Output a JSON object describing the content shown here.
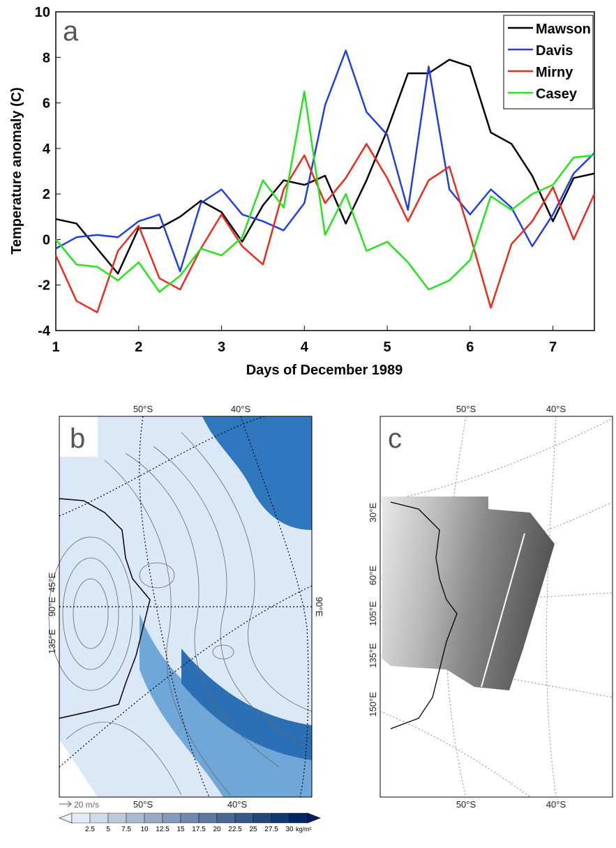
{
  "chart_data": {
    "type": "line",
    "annotation": "a",
    "xlabel": "Days of December 1989",
    "ylabel": "Temperature anomaly (C)",
    "x": [
      1,
      1.25,
      1.5,
      1.75,
      2,
      2.25,
      2.5,
      2.75,
      3,
      3.25,
      3.5,
      3.75,
      4,
      4.25,
      4.5,
      4.75,
      5,
      5.25,
      5.5,
      5.75,
      6,
      6.25,
      6.5,
      6.75,
      7,
      7.25,
      7.5
    ],
    "series": [
      {
        "name": "Mawson",
        "color": "#000000",
        "values": [
          0.9,
          0.7,
          -0.4,
          -1.5,
          0.5,
          0.5,
          1.0,
          1.7,
          1.2,
          -0.1,
          1.5,
          2.6,
          2.4,
          2.8,
          0.7,
          2.6,
          4.8,
          7.3,
          7.3,
          7.9,
          7.6,
          4.7,
          4.2,
          2.8,
          0.8,
          2.7,
          2.9
        ]
      },
      {
        "name": "Davis",
        "color": "#1f3fe0",
        "values": [
          -0.4,
          0.1,
          0.2,
          0.1,
          0.8,
          1.1,
          -1.4,
          1.6,
          2.2,
          1.1,
          0.8,
          0.4,
          1.6,
          5.9,
          8.3,
          5.6,
          4.6,
          1.3,
          7.6,
          2.2,
          1.1,
          2.2,
          1.4,
          -0.3,
          1.1,
          2.9,
          3.8
        ]
      },
      {
        "name": "Mirny",
        "color": "#ee2a1a",
        "values": [
          -0.7,
          -2.7,
          -3.2,
          -0.5,
          0.6,
          -1.7,
          -2.2,
          -0.4,
          1.1,
          -0.3,
          -1.1,
          2.2,
          3.7,
          1.6,
          2.7,
          4.2,
          2.7,
          0.8,
          2.6,
          3.2,
          0.2,
          -3.0,
          -0.2,
          0.8,
          2.3,
          0.0,
          2.0
        ]
      },
      {
        "name": "Casey",
        "color": "#22e61a",
        "values": [
          0.0,
          -1.1,
          -1.2,
          -1.8,
          -1.0,
          -2.3,
          -1.6,
          -0.4,
          -0.7,
          0.1,
          2.6,
          1.4,
          6.5,
          0.2,
          2.0,
          -0.5,
          -0.1,
          -1.0,
          -2.2,
          -1.8,
          -0.9,
          1.9,
          1.3,
          2.0,
          2.4,
          3.6,
          3.7
        ]
      }
    ],
    "xlim": [
      1,
      7.5
    ],
    "ylim": [
      -4,
      10
    ],
    "xticks": [
      1,
      2,
      3,
      4,
      5,
      6,
      7
    ],
    "yticks": [
      -4,
      -2,
      0,
      2,
      4,
      6,
      8,
      10
    ],
    "legend": "upper right",
    "grid": false
  },
  "panel_b": {
    "label": "b",
    "top_lats": [
      "50°S",
      "40°S"
    ],
    "bottom_lats": [
      "50°S",
      "40°S"
    ],
    "left_lons": [
      "45°E",
      "90°E",
      "135°E"
    ],
    "right_lon": "90°E",
    "vector_key": "20 m/s",
    "colorbar": {
      "ticks": [
        "2.5",
        "5",
        "7.5",
        "10",
        "12.5",
        "15",
        "17.5",
        "20",
        "22.5",
        "25",
        "27.5",
        "30"
      ],
      "unit": "kg/m²"
    }
  },
  "panel_c": {
    "label": "c",
    "top_lats": [
      "50°S",
      "40°S"
    ],
    "bottom_lats": [
      "50°S",
      "40°S"
    ],
    "left_lons": [
      "30°E",
      "60°E",
      "105°E",
      "135°E",
      "150°E"
    ]
  }
}
